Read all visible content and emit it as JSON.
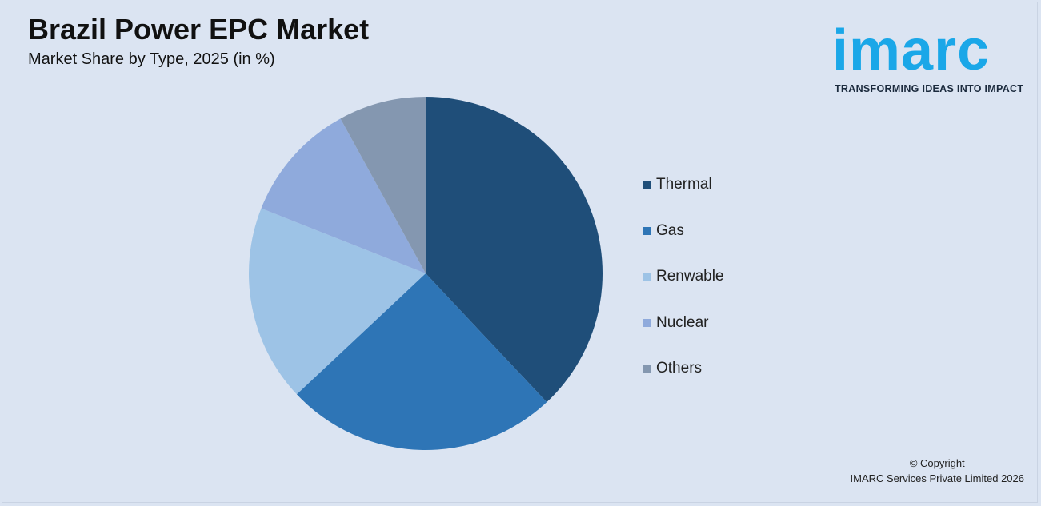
{
  "title": "Brazil Power EPC Market",
  "subtitle": "Market Share by Type, 2025 (in %)",
  "logo": {
    "wordmark": "imarc",
    "tagline": "TRANSFORMING IDEAS INTO IMPACT",
    "color": "#1aa7e8"
  },
  "chart_data": {
    "type": "pie",
    "title": "Brazil Power EPC Market",
    "subtitle": "Market Share by Type, 2025 (in %)",
    "legend_position": "right",
    "slices": [
      {
        "label": "Thermal",
        "value": 38,
        "color": "#1f4e79"
      },
      {
        "label": "Gas",
        "value": 25,
        "color": "#2e75b6"
      },
      {
        "label": "Renwable",
        "value": 18,
        "color": "#9dc3e6"
      },
      {
        "label": "Nuclear",
        "value": 11,
        "color": "#8faadc"
      },
      {
        "label": "Others",
        "value": 8,
        "color": "#8497b0"
      }
    ]
  },
  "copyright": {
    "line1": "© Copyright",
    "line2": "IMARC Services Private Limited 2026"
  }
}
